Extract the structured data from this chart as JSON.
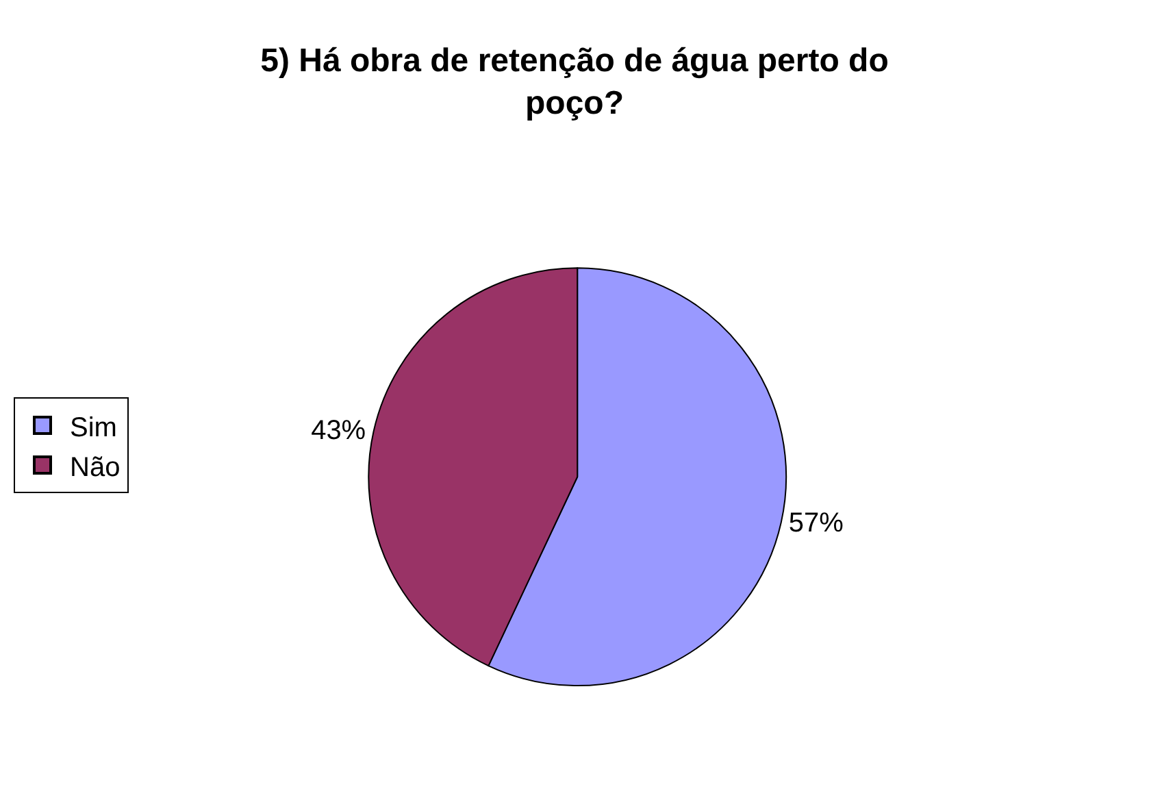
{
  "chart_data": {
    "type": "pie",
    "title": "5) Há obra de retenção de água perto do\npoço?",
    "categories": [
      "Sim",
      "Não"
    ],
    "values": [
      57,
      43
    ],
    "value_labels": [
      "57%",
      "43%"
    ],
    "colors": [
      "#9999ff",
      "#993366"
    ],
    "legend": "left"
  }
}
